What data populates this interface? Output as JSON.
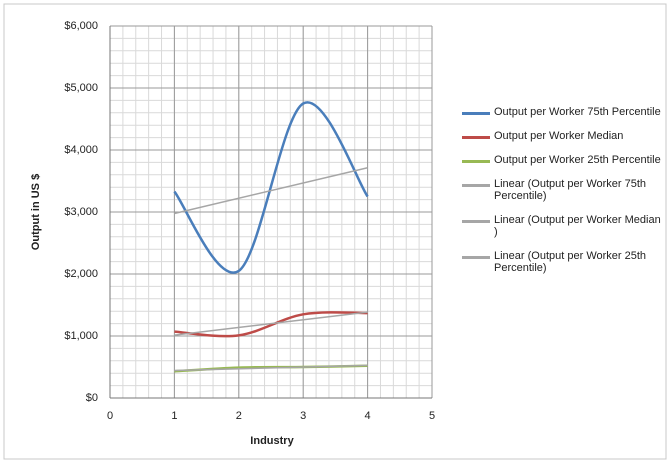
{
  "chart_data": {
    "type": "line",
    "smooth": true,
    "x_label": "Industry",
    "y_label": "Output in US $",
    "x": [
      1,
      2,
      3,
      4
    ],
    "xlim": [
      0,
      5
    ],
    "xticks": [
      0,
      1,
      2,
      3,
      4,
      5
    ],
    "ylim": [
      0,
      6000
    ],
    "yticks": [
      {
        "value": 0,
        "label": "$0"
      },
      {
        "value": 1000,
        "label": "$1,000"
      },
      {
        "value": 2000,
        "label": "$2,000"
      },
      {
        "value": 3000,
        "label": "$3,000"
      },
      {
        "value": 4000,
        "label": "$4,000"
      },
      {
        "value": 5000,
        "label": "$5,000"
      },
      {
        "value": 6000,
        "label": "$6,000"
      }
    ],
    "grid": true,
    "x_minor_step": 0.2,
    "y_minor_step": 200,
    "legend": "right",
    "series": [
      {
        "name": "Output per Worker 75th Percentile",
        "color": "#4a7ebb",
        "values": [
          3330,
          2050,
          4750,
          3250
        ],
        "trendline": "linear",
        "trendline_name": "Linear (Output per Worker 75th Percentile)",
        "trendline_color": "#a6a6a6"
      },
      {
        "name": "Output per Worker Median",
        "color": "#be4b48",
        "values": [
          1070,
          1010,
          1350,
          1370
        ],
        "trendline": "linear",
        "trendline_name": "Linear (Output per Worker Median )",
        "trendline_color": "#a6a6a6"
      },
      {
        "name": "Output per Worker 25th Percentile",
        "color": "#98b954",
        "values": [
          430,
          490,
          500,
          520
        ],
        "trendline": "linear",
        "trendline_name": "Linear (Output per Worker 25th Percentile)",
        "trendline_color": "#a6a6a6"
      }
    ]
  }
}
